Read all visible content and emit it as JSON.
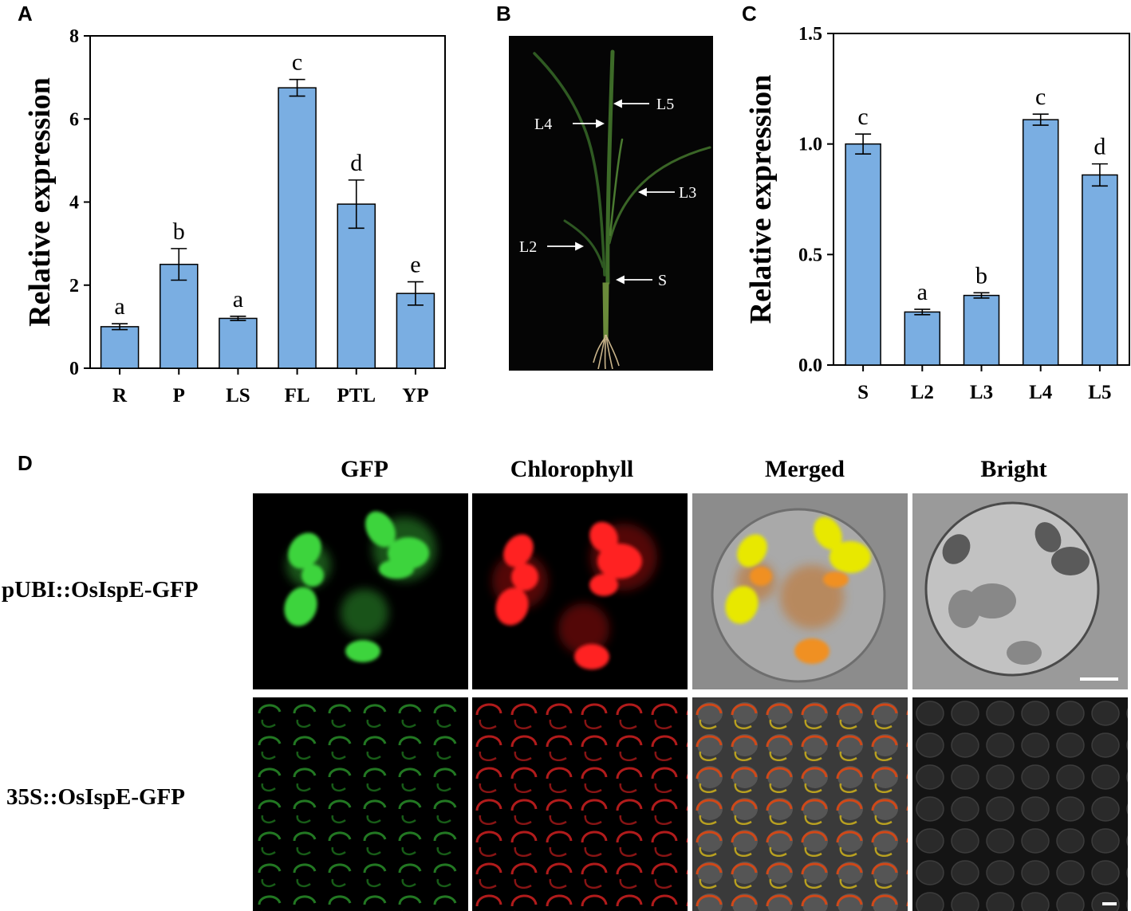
{
  "panels": {
    "a": "A",
    "b": "B",
    "c": "C",
    "d": "D"
  },
  "chart_data": [
    {
      "id": "A",
      "type": "bar",
      "categories": [
        "R",
        "P",
        "LS",
        "FL",
        "PTL",
        "YP"
      ],
      "values": [
        1.0,
        2.5,
        1.2,
        6.75,
        3.95,
        1.8
      ],
      "errors": [
        0.07,
        0.38,
        0.05,
        0.2,
        0.58,
        0.28
      ],
      "significance": [
        "a",
        "b",
        "a",
        "c",
        "d",
        "e"
      ],
      "ylabel": "Relative expression",
      "ylim": [
        0,
        8
      ],
      "yticks": [
        "0",
        "2",
        "4",
        "6",
        "8"
      ],
      "bar_color": "#7aaee2"
    },
    {
      "id": "C",
      "type": "bar",
      "categories": [
        "S",
        "L2",
        "L3",
        "L4",
        "L5"
      ],
      "values": [
        1.0,
        0.24,
        0.315,
        1.11,
        0.86
      ],
      "errors": [
        0.045,
        0.012,
        0.012,
        0.025,
        0.05
      ],
      "significance": [
        "c",
        "a",
        "b",
        "c",
        "d"
      ],
      "ylabel": "Relative expression",
      "ylim": [
        0,
        1.5
      ],
      "yticks": [
        "0.0",
        "0.5",
        "1.0",
        "1.5"
      ],
      "bar_color": "#7aaee2"
    }
  ],
  "plant_photo": {
    "labels": [
      "L5",
      "L4",
      "L3",
      "L2",
      "S"
    ]
  },
  "microscopy": {
    "columns": [
      "GFP",
      "Chlorophyll",
      "Merged",
      "Bright"
    ],
    "rows": [
      "pUBI::OsIspE-GFP",
      "35S::OsIspE-GFP"
    ]
  }
}
